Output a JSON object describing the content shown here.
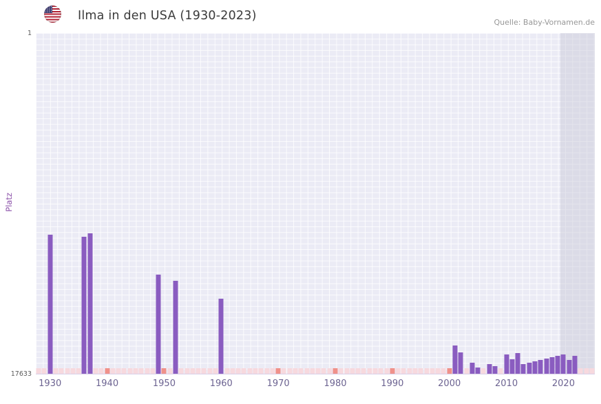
{
  "header": {
    "title": "Ilma in den USA (1930-2023)",
    "source": "Quelle: Baby-Vornamen.de",
    "flag": "us-flag"
  },
  "theme": {
    "accent-bar": "#8a5cc0",
    "plot-bg": "#ebebf5",
    "grid-line": "rgba(255,255,255,0.8)",
    "no-data": "#f7d9de",
    "decade-marker": "#f0918a",
    "highlight-band": "rgba(200,200,216,0.45)",
    "tick-text": "#6c6391",
    "axis-text": "#5a5a5a",
    "ylabel-text": "#8a4fa8",
    "title-text": "#3b3b3b",
    "source-text": "#979797",
    "flag-red": "#b22234",
    "flag-blue": "#3c3b6e"
  },
  "chart_data": {
    "type": "bar",
    "title": "Ilma in den USA (1930-2023)",
    "xlabel": "",
    "ylabel": "Platz",
    "y_axis": {
      "top_tick": "1",
      "bottom_tick": "17633"
    },
    "y_range": [
      1,
      17633
    ],
    "y_inverted": true,
    "x_range": [
      1927.5,
      2025.5
    ],
    "x_ticks": [
      1930,
      1940,
      1950,
      1960,
      1970,
      1980,
      1990,
      2000,
      2010,
      2020
    ],
    "grid": true,
    "legend": "none",
    "highlight_from_year": 2019.5,
    "note": "Bars show yearly rank (Platz) of the name Ilma in the USA; rank 1 is best (top). Pink cells at the bottom mark years without ranking; salmon cells mark decade ticks; shaded band marks most recent years.",
    "series": [
      {
        "name": "Platz",
        "points": [
          {
            "year": 1930,
            "rank": 10450
          },
          {
            "year": 1936,
            "rank": 10560
          },
          {
            "year": 1937,
            "rank": 10380
          },
          {
            "year": 1949,
            "rank": 12510
          },
          {
            "year": 1952,
            "rank": 12830
          },
          {
            "year": 1960,
            "rank": 13760
          },
          {
            "year": 2001,
            "rank": 16170
          },
          {
            "year": 2002,
            "rank": 16530
          },
          {
            "year": 2004,
            "rank": 17060
          },
          {
            "year": 2005,
            "rank": 17310
          },
          {
            "year": 2007,
            "rank": 17130
          },
          {
            "year": 2008,
            "rank": 17240
          },
          {
            "year": 2010,
            "rank": 16640
          },
          {
            "year": 2011,
            "rank": 16890
          },
          {
            "year": 2012,
            "rank": 16570
          },
          {
            "year": 2013,
            "rank": 17140
          },
          {
            "year": 2014,
            "rank": 17060
          },
          {
            "year": 2015,
            "rank": 16990
          },
          {
            "year": 2016,
            "rank": 16920
          },
          {
            "year": 2017,
            "rank": 16850
          },
          {
            "year": 2018,
            "rank": 16780
          },
          {
            "year": 2019,
            "rank": 16710
          },
          {
            "year": 2020,
            "rank": 16640
          },
          {
            "year": 2021,
            "rank": 16920
          },
          {
            "year": 2022,
            "rank": 16710
          }
        ]
      }
    ]
  }
}
